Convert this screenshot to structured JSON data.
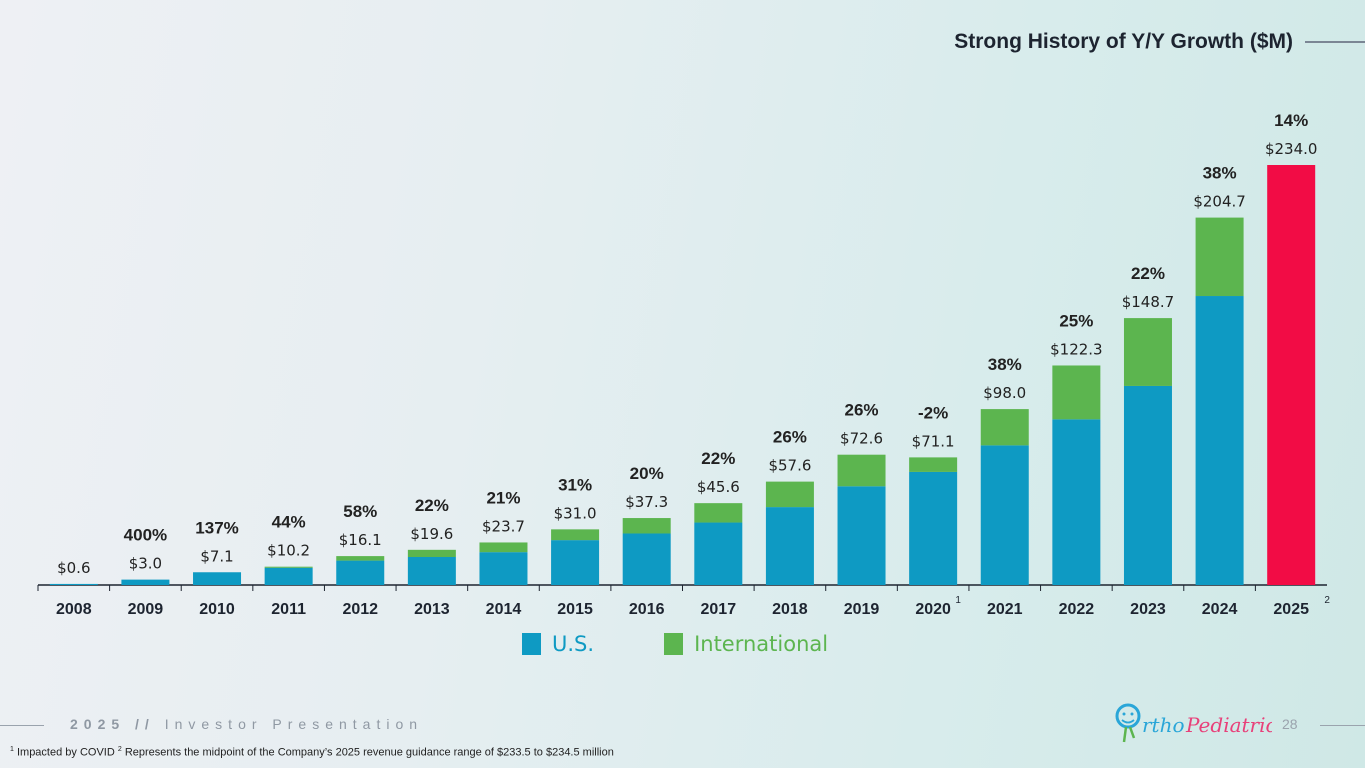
{
  "title": "Strong History of Y/Y Growth ($M)",
  "colors": {
    "us": "#0e9ac3",
    "international": "#5cb54f",
    "guidance": "#f20c45",
    "axis": "#1d2430",
    "text": "#222222"
  },
  "chart_data": {
    "type": "bar",
    "stacked": true,
    "title": "Strong History of Y/Y Growth ($M)",
    "categories": [
      "2008",
      "2009",
      "2010",
      "2011",
      "2012",
      "2013",
      "2014",
      "2015",
      "2016",
      "2017",
      "2018",
      "2019",
      "2020",
      "2021",
      "2022",
      "2023",
      "2024",
      "2025"
    ],
    "category_superscripts": [
      "",
      "",
      "",
      "",
      "",
      "",
      "",
      "",
      "",
      "",
      "",
      "",
      "1",
      "",
      "",
      "",
      "",
      "2"
    ],
    "totals": [
      0.6,
      3.0,
      7.1,
      10.2,
      16.1,
      19.6,
      23.7,
      31.0,
      37.3,
      45.6,
      57.6,
      72.6,
      71.1,
      98.0,
      122.3,
      148.7,
      204.7,
      234.0
    ],
    "value_labels": [
      "$0.6",
      "$3.0",
      "$7.1",
      "$10.2",
      "$16.1",
      "$19.6",
      "$23.7",
      "$31.0",
      "$37.3",
      "$45.6",
      "$57.6",
      "$72.6",
      "$71.1",
      "$98.0",
      "$122.3",
      "$148.7",
      "$204.7",
      "$234.0"
    ],
    "growth_labels": [
      "",
      "400%",
      "137%",
      "44%",
      "58%",
      "22%",
      "21%",
      "31%",
      "20%",
      "22%",
      "26%",
      "26%",
      "-2%",
      "38%",
      "25%",
      "22%",
      "38%",
      "14%"
    ],
    "series": [
      {
        "name": "U.S.",
        "values": [
          0.6,
          3.0,
          7.1,
          9.6,
          13.6,
          15.6,
          18.3,
          25.0,
          28.7,
          34.8,
          43.4,
          55.0,
          63.0,
          77.8,
          92.3,
          110.9,
          161.0,
          234.0
        ]
      },
      {
        "name": "International",
        "values": [
          0.0,
          0.0,
          0.0,
          0.6,
          2.5,
          4.0,
          5.4,
          6.0,
          8.6,
          10.8,
          14.2,
          17.6,
          8.1,
          20.2,
          30.0,
          37.8,
          43.7,
          0.0
        ]
      }
    ],
    "highlight_index": 17,
    "ylim": [
      0,
      250
    ],
    "grid": false,
    "legend_position": "bottom"
  },
  "legend": [
    {
      "label": "U.S.",
      "color": "#0e9ac3"
    },
    {
      "label": "International",
      "color": "#5cb54f"
    }
  ],
  "footer": {
    "year": "2025",
    "separator": "//",
    "label": "Investor Presentation",
    "page": "28"
  },
  "logo_text": "OrthoPediatrics",
  "footnotes": {
    "n1_mark": "1",
    "n1": "Impacted by COVID",
    "n2_mark": "2",
    "n2": "Represents the midpoint of the Company’s 2025 revenue guidance range of $233.5 to $234.5 million"
  }
}
